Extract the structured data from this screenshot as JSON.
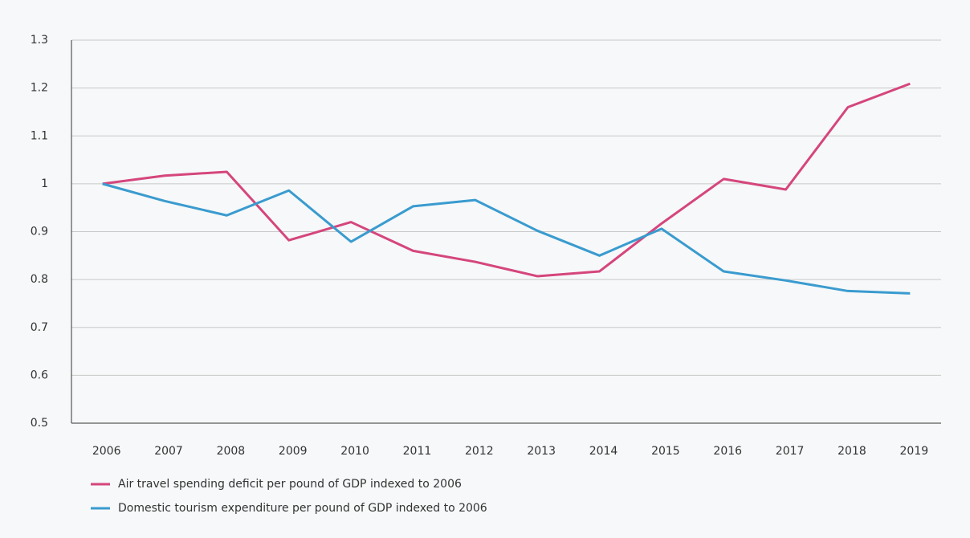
{
  "chart_data": {
    "type": "line",
    "categories": [
      "2006",
      "2007",
      "2008",
      "2009",
      "2010",
      "2011",
      "2012",
      "2013",
      "2014",
      "2015",
      "2016",
      "2017",
      "2018",
      "2019"
    ],
    "series": [
      {
        "name": "Air travel spending deficit per pound of GDP indexed to 2006",
        "color": "#d5467c",
        "values": [
          1.0,
          1.017,
          1.025,
          0.882,
          0.92,
          0.86,
          0.837,
          0.807,
          0.817,
          0.917,
          1.01,
          0.988,
          1.16,
          1.209
        ]
      },
      {
        "name": "Domestic tourism expenditure per pound of GDP indexed to 2006",
        "color": "#3a9bcf",
        "values": [
          1.0,
          0.964,
          0.934,
          0.986,
          0.879,
          0.953,
          0.966,
          0.902,
          0.85,
          0.906,
          0.817,
          0.798,
          0.776,
          0.771
        ]
      }
    ],
    "ylim": [
      0.5,
      1.3
    ],
    "yticks": [
      0.5,
      0.6,
      0.7,
      0.8,
      0.9,
      1,
      1.1,
      1.2,
      1.3
    ],
    "grid": true,
    "legend": "bottom-left"
  }
}
